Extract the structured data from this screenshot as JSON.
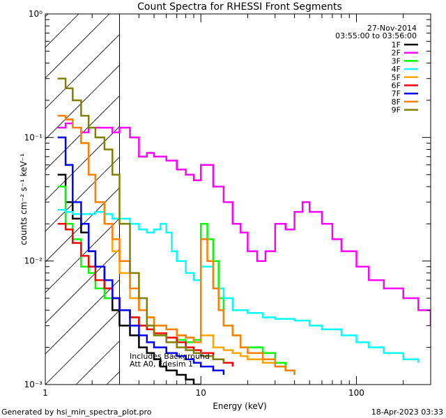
{
  "chart_data": {
    "type": "line",
    "title": "Count Spectra for RHESSI Front Segments",
    "xlabel": "Energy (keV)",
    "ylabel": "counts cm⁻² s⁻¹ keV⁻¹",
    "x_scale": "log",
    "y_scale": "log",
    "xlim": [
      1,
      300
    ],
    "ylim": [
      0.001,
      1
    ],
    "x_ticks": [
      {
        "value": 1,
        "label": "1"
      },
      {
        "value": 10,
        "label": "10"
      },
      {
        "value": 100,
        "label": "100"
      }
    ],
    "y_ticks": [
      {
        "value": 0.001,
        "label": "10⁻³"
      },
      {
        "value": 0.01,
        "label": "10⁻²"
      },
      {
        "value": 0.1,
        "label": "10⁻¹"
      },
      {
        "value": 1,
        "label": "10⁰"
      }
    ],
    "date_label": "27-Nov-2014",
    "time_label": "03:55:00 to 03:56:00",
    "hatched_region_xmax": 3,
    "annotation_lines": [
      "Includes Background",
      "Att A0, Fdesim 1"
    ],
    "legend_position": "top-right",
    "series": [
      {
        "name": "1F",
        "color": "#000000",
        "x": [
          1.2,
          1.35,
          1.5,
          1.7,
          1.9,
          2.1,
          2.4,
          2.7,
          3.0,
          3.5,
          4.0,
          4.5,
          5.0,
          5.5,
          6.0,
          7.0,
          8.0,
          9.0,
          10.0
        ],
        "y": [
          0.05,
          0.03,
          0.022,
          0.017,
          0.012,
          0.009,
          0.006,
          0.004,
          0.003,
          0.0025,
          0.002,
          0.0018,
          0.0016,
          0.0014,
          0.0013,
          0.0012,
          0.0011,
          0.001,
          0.001
        ]
      },
      {
        "name": "2F",
        "color": "#ff00ff",
        "x": [
          1.2,
          1.35,
          1.5,
          1.7,
          1.9,
          2.1,
          2.4,
          2.7,
          3.0,
          3.5,
          4.0,
          4.5,
          5.0,
          6.0,
          7.0,
          8.0,
          9.0,
          10.0,
          12.0,
          14.0,
          16.0,
          18.0,
          20.0,
          23.0,
          26.0,
          30.0,
          35.0,
          40.0,
          45.0,
          50.0,
          60.0,
          70.0,
          80.0,
          100.0,
          120.0,
          150.0,
          200.0,
          250.0,
          300.0
        ],
        "y": [
          0.12,
          0.13,
          0.12,
          0.11,
          0.12,
          0.12,
          0.12,
          0.11,
          0.12,
          0.1,
          0.07,
          0.075,
          0.07,
          0.065,
          0.055,
          0.05,
          0.045,
          0.06,
          0.04,
          0.03,
          0.02,
          0.017,
          0.012,
          0.01,
          0.012,
          0.02,
          0.018,
          0.025,
          0.03,
          0.025,
          0.02,
          0.015,
          0.012,
          0.009,
          0.007,
          0.006,
          0.005,
          0.004,
          0.003
        ]
      },
      {
        "name": "3F",
        "color": "#00ff00",
        "x": [
          1.2,
          1.35,
          1.5,
          1.7,
          1.9,
          2.1,
          2.4,
          2.7,
          3.0,
          3.5,
          4.0,
          4.5,
          5.0,
          6.0,
          7.0,
          8.0,
          9.0,
          10.0,
          11.0,
          12.0,
          13.0,
          14.0,
          16.0,
          18.0,
          20.0,
          25.0,
          30.0,
          35.0,
          40.0
        ],
        "y": [
          0.04,
          0.02,
          0.015,
          0.009,
          0.008,
          0.006,
          0.005,
          0.005,
          0.004,
          0.0035,
          0.003,
          0.0028,
          0.0025,
          0.0024,
          0.0023,
          0.0022,
          0.0023,
          0.02,
          0.015,
          0.01,
          0.005,
          0.003,
          0.0025,
          0.002,
          0.002,
          0.0018,
          0.0015,
          0.0013,
          0.0012
        ]
      },
      {
        "name": "4F",
        "color": "#00ffff",
        "x": [
          1.2,
          1.35,
          1.5,
          1.7,
          1.9,
          2.1,
          2.4,
          2.7,
          3.0,
          3.5,
          4.0,
          4.5,
          5.0,
          5.5,
          6.0,
          6.5,
          7.0,
          8.0,
          9.0,
          10.0,
          12.0,
          14.0,
          16.0,
          20.0,
          25.0,
          30.0,
          40.0,
          50.0,
          60.0,
          80.0,
          100.0,
          120.0,
          150.0,
          200.0,
          250.0
        ],
        "y": [
          0.026,
          0.025,
          0.024,
          0.024,
          0.024,
          0.025,
          0.024,
          0.022,
          0.022,
          0.02,
          0.018,
          0.017,
          0.018,
          0.02,
          0.017,
          0.012,
          0.01,
          0.008,
          0.007,
          0.009,
          0.006,
          0.005,
          0.004,
          0.0038,
          0.0035,
          0.0034,
          0.0033,
          0.003,
          0.0028,
          0.0025,
          0.0022,
          0.002,
          0.0018,
          0.0016,
          0.0015
        ]
      },
      {
        "name": "5F",
        "color": "#ffa500",
        "x": [
          1.2,
          1.35,
          1.5,
          1.7,
          1.9,
          2.1,
          2.4,
          2.7,
          3.0,
          3.5,
          4.0,
          4.5,
          5.0,
          6.0,
          7.0,
          8.0,
          9.0,
          10.0,
          12.0,
          14.0,
          16.0,
          18.0,
          20.0,
          25.0,
          30.0,
          35.0,
          40.0
        ],
        "y": [
          0.15,
          0.14,
          0.12,
          0.09,
          0.05,
          0.03,
          0.02,
          0.012,
          0.008,
          0.005,
          0.004,
          0.0035,
          0.003,
          0.0028,
          0.0025,
          0.0024,
          0.0022,
          0.0025,
          0.002,
          0.0019,
          0.0018,
          0.0017,
          0.0016,
          0.0015,
          0.0014,
          0.0013,
          0.0012
        ]
      },
      {
        "name": "6F",
        "color": "#ff0000",
        "x": [
          1.2,
          1.35,
          1.5,
          1.7,
          1.9,
          2.1,
          2.4,
          2.7,
          3.0,
          3.5,
          4.0,
          4.5,
          5.0,
          6.0,
          7.0,
          8.0,
          9.0,
          10.0,
          12.0,
          14.0,
          16.0
        ],
        "y": [
          0.02,
          0.018,
          0.014,
          0.011,
          0.009,
          0.007,
          0.006,
          0.005,
          0.004,
          0.0035,
          0.003,
          0.0028,
          0.0026,
          0.0024,
          0.0022,
          0.002,
          0.0019,
          0.0018,
          0.0016,
          0.0015,
          0.0014
        ]
      },
      {
        "name": "7F",
        "color": "#0000ff",
        "x": [
          1.2,
          1.35,
          1.5,
          1.7,
          1.9,
          2.1,
          2.4,
          2.7,
          3.0,
          3.5,
          4.0,
          4.5,
          5.0,
          6.0,
          7.0,
          8.0,
          9.0,
          10.0,
          12.0,
          14.0
        ],
        "y": [
          0.1,
          0.06,
          0.03,
          0.02,
          0.012,
          0.009,
          0.007,
          0.005,
          0.004,
          0.003,
          0.0025,
          0.0022,
          0.002,
          0.0018,
          0.0017,
          0.0016,
          0.0015,
          0.0014,
          0.0013,
          0.0012
        ]
      },
      {
        "name": "8F",
        "color": "#ff8000",
        "x": [
          1.2,
          1.35,
          1.5,
          1.7,
          1.9,
          2.1,
          2.4,
          2.7,
          3.0,
          3.5,
          4.0,
          4.5,
          5.0,
          6.0,
          7.0,
          8.0,
          9.0,
          10.0,
          11.0,
          12.0,
          13.0,
          14.0,
          16.0,
          18.0,
          20.0,
          25.0,
          30.0,
          35.0,
          40.0
        ],
        "y": [
          0.15,
          0.14,
          0.12,
          0.09,
          0.05,
          0.03,
          0.02,
          0.015,
          0.01,
          0.006,
          0.004,
          0.0035,
          0.003,
          0.0028,
          0.0025,
          0.0024,
          0.0022,
          0.015,
          0.01,
          0.006,
          0.004,
          0.003,
          0.0025,
          0.002,
          0.0018,
          0.0016,
          0.0014,
          0.0013,
          0.0012
        ]
      },
      {
        "name": "9F",
        "color": "#808000",
        "x": [
          1.2,
          1.35,
          1.5,
          1.7,
          1.9,
          2.1,
          2.4,
          2.7,
          3.0,
          3.5,
          4.0,
          4.5,
          5.0,
          6.0,
          7.0,
          8.0,
          9.0,
          10.0,
          12.0,
          14.0
        ],
        "y": [
          0.3,
          0.25,
          0.2,
          0.15,
          0.12,
          0.1,
          0.08,
          0.05,
          0.02,
          0.008,
          0.005,
          0.003,
          0.0025,
          0.0022,
          0.002,
          0.0019,
          0.0018,
          0.0017,
          0.0016,
          0.0015
        ]
      }
    ]
  },
  "footer": {
    "generated": "Generated by hsi_min_spectra_plot.pro",
    "timestamp": "18-Apr-2023 03:33"
  }
}
